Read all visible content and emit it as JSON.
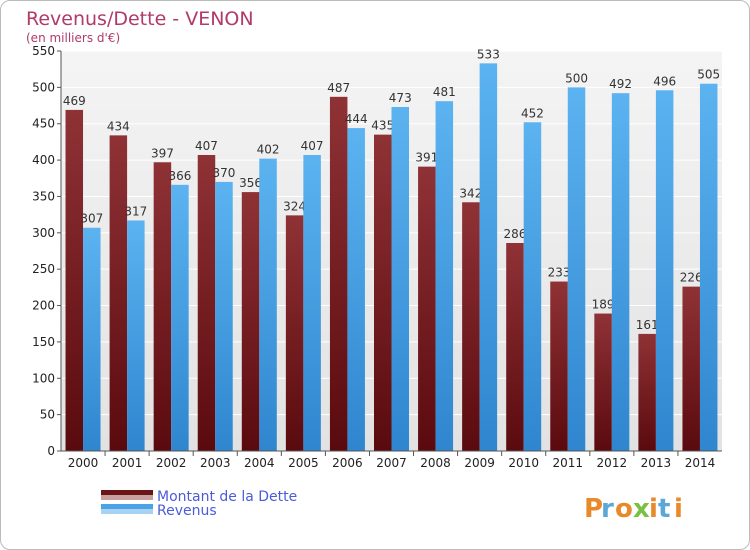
{
  "chart_data": {
    "type": "bar",
    "title": "Revenus/Dette - VENON",
    "subtitle": "(en milliers d'€)",
    "categories": [
      "2000",
      "2001",
      "2002",
      "2003",
      "2004",
      "2005",
      "2006",
      "2007",
      "2008",
      "2009",
      "2010",
      "2011",
      "2012",
      "2013",
      "2014"
    ],
    "series": [
      {
        "name": "Montant de la Dette",
        "color": "#7a1f24",
        "values": [
          469,
          434,
          397,
          407,
          356,
          324,
          487,
          435,
          391,
          342,
          286,
          233,
          189,
          161,
          226
        ]
      },
      {
        "name": "Revenus",
        "color": "#4aa3e6",
        "values": [
          307,
          317,
          366,
          370,
          402,
          407,
          444,
          473,
          481,
          533,
          452,
          500,
          492,
          496,
          505
        ]
      }
    ],
    "yticks": [
      0,
      50,
      100,
      150,
      200,
      250,
      300,
      350,
      400,
      450,
      500,
      550
    ],
    "ylim": [
      0,
      550
    ],
    "grid": true,
    "legend_position": "bottom-left"
  },
  "logo": {
    "text": "Proxiti",
    "letters": [
      "P",
      "r",
      "o",
      "x",
      "i",
      "t",
      "i"
    ]
  }
}
